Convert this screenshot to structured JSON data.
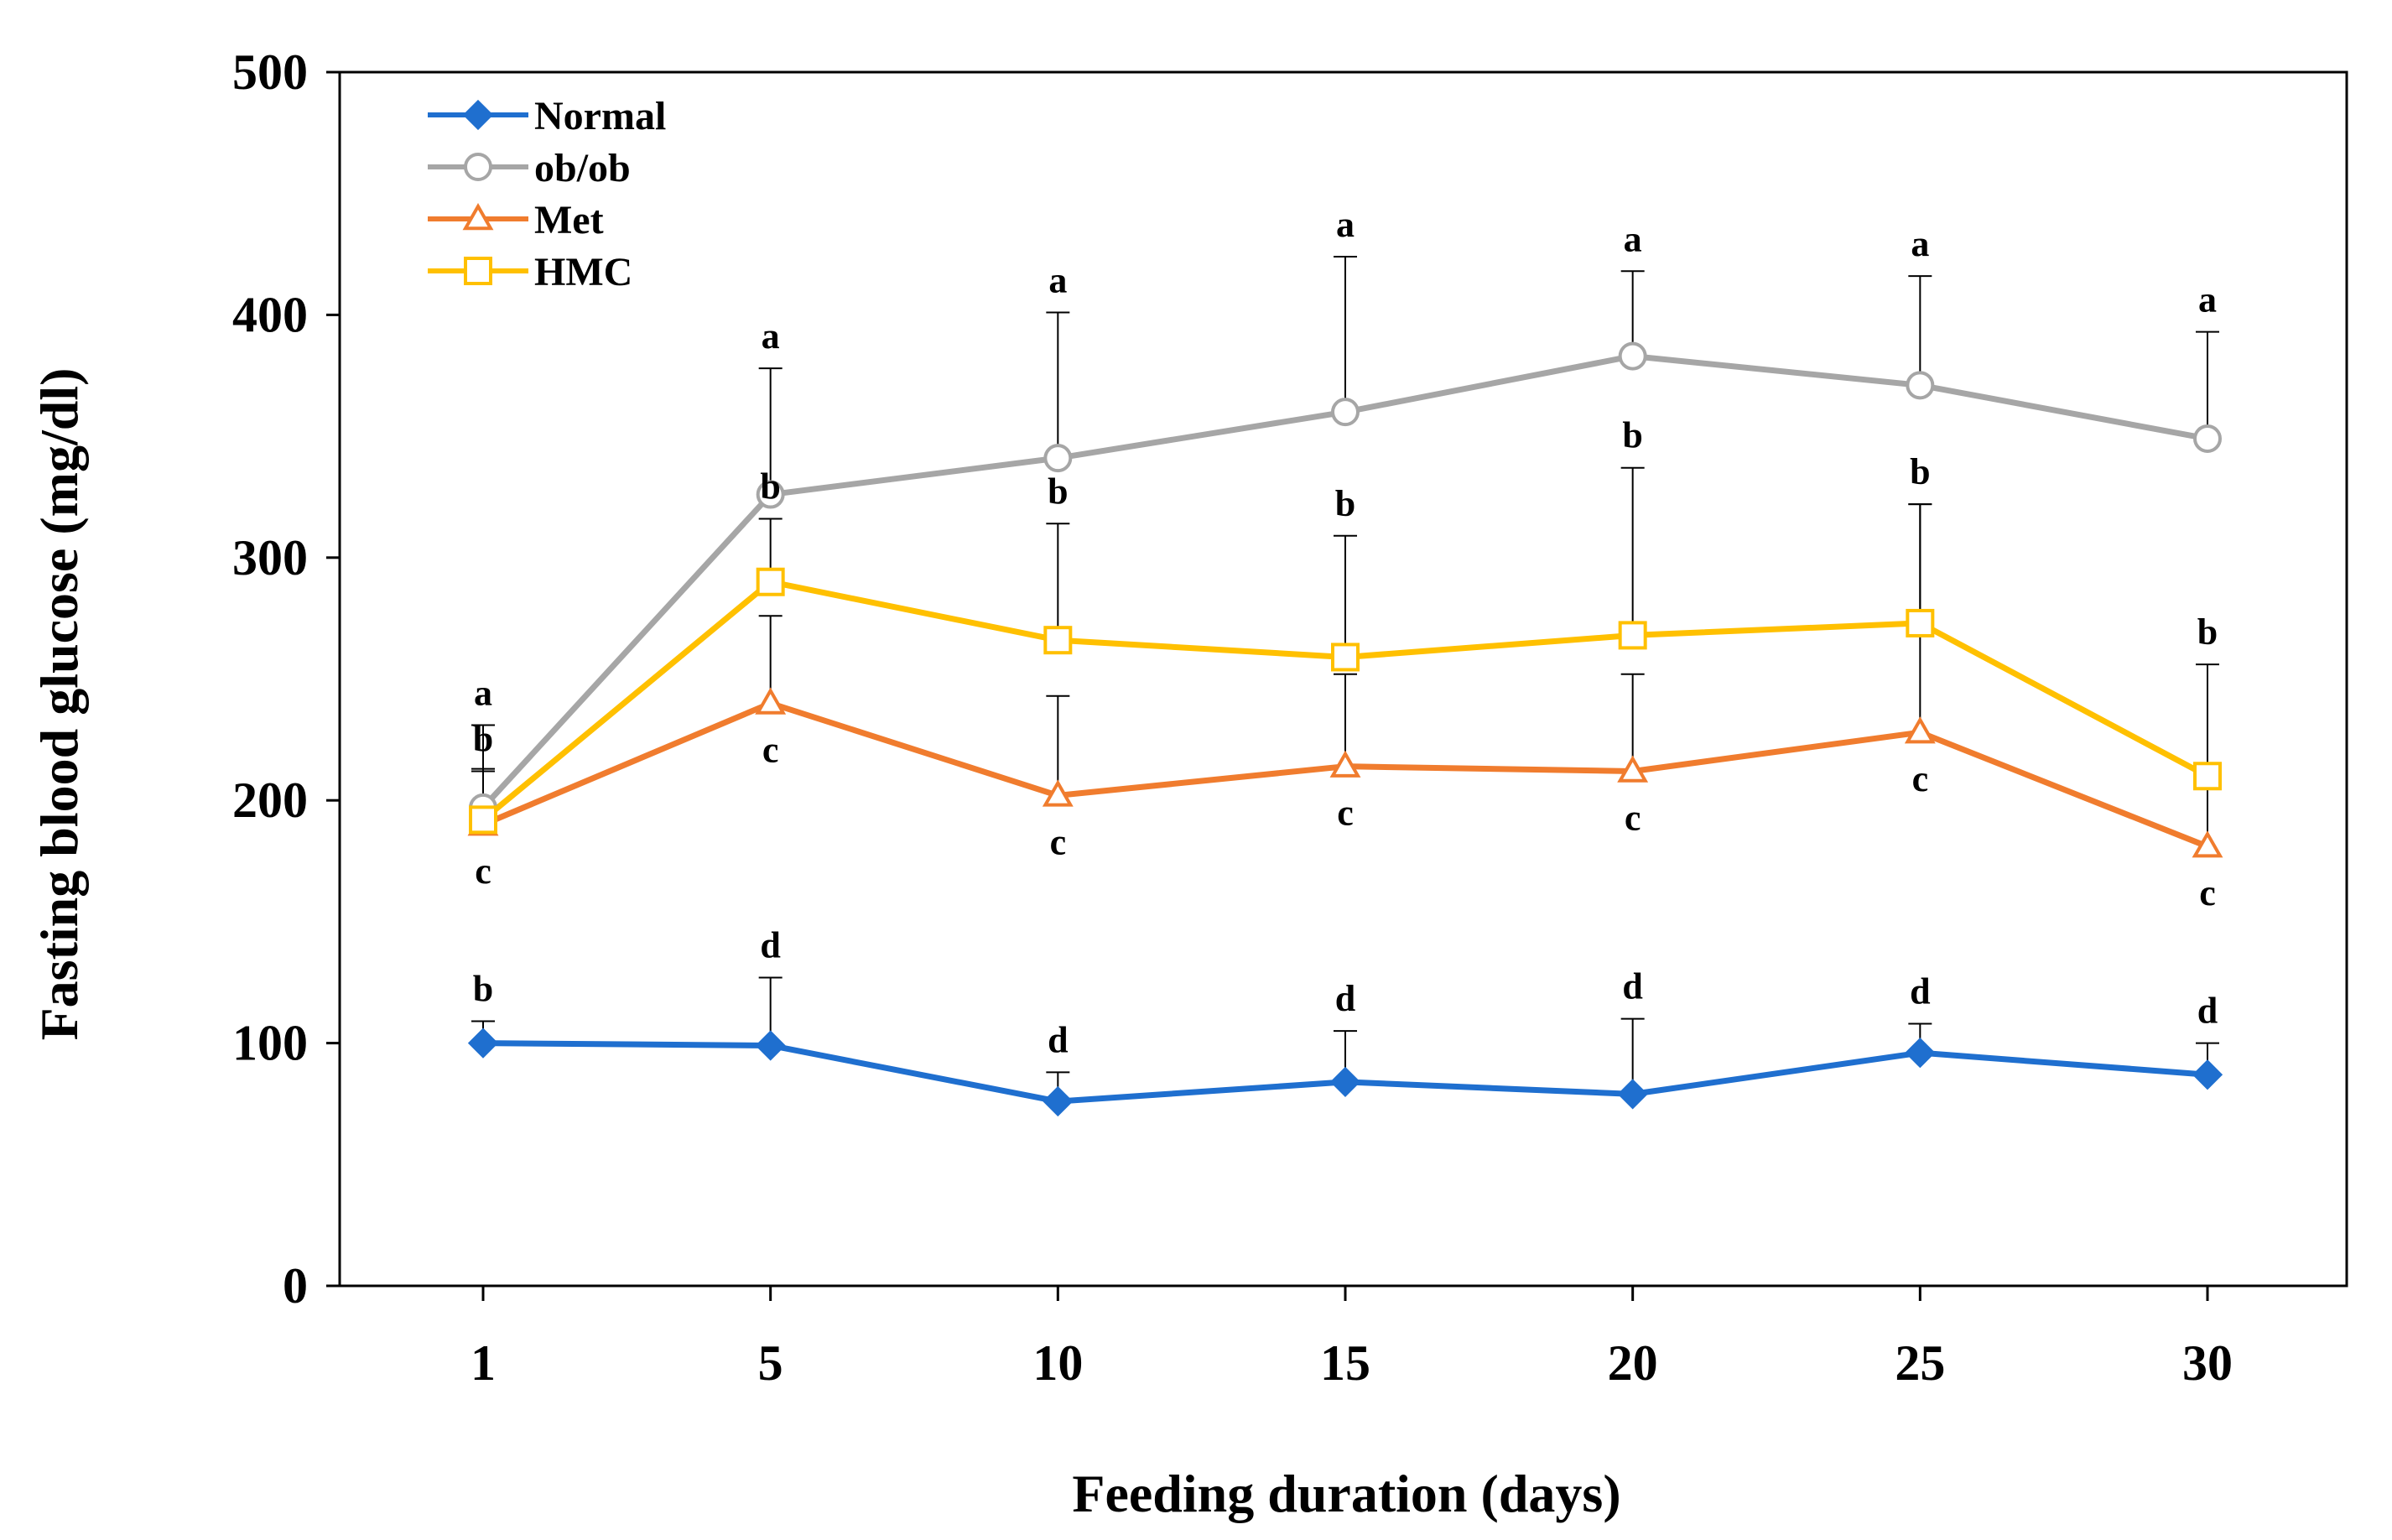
{
  "chart_data": {
    "type": "line",
    "title": "",
    "xlabel": "Feeding duration (days)",
    "ylabel": "Fasting blood glucose (mg/dl)",
    "categories": [
      "1",
      "5",
      "10",
      "15",
      "20",
      "25",
      "30"
    ],
    "ylim": [
      0,
      500
    ],
    "yticks": [
      "0",
      "100",
      "200",
      "300",
      "400",
      "500"
    ],
    "grid": false,
    "legend_position": "top-left",
    "series": [
      {
        "name": "Normal",
        "color": "#1f6fcf",
        "marker": "diamond",
        "marker_fill": "#1f6fcf",
        "values": [
          100,
          99,
          76,
          84,
          79,
          96,
          87
        ],
        "error_upper": [
          109,
          127,
          88,
          105,
          110,
          108,
          100
        ],
        "labels": [
          "b",
          "d",
          "d",
          "d",
          "d",
          "d",
          "d"
        ],
        "label_side": [
          "above",
          "above",
          "above",
          "above",
          "above",
          "above",
          "above"
        ]
      },
      {
        "name": "ob/ob",
        "color": "#a6a6a6",
        "marker": "circle",
        "marker_fill": "#ffffff",
        "values": [
          197,
          326,
          341,
          360,
          383,
          371,
          349
        ],
        "error_upper": [
          231,
          378,
          401,
          424,
          418,
          416,
          393
        ],
        "labels": [
          "a",
          "a",
          "a",
          "a",
          "a",
          "a",
          "a"
        ],
        "label_side": [
          "above",
          "above",
          "above",
          "above",
          "above",
          "above",
          "above"
        ]
      },
      {
        "name": "Met",
        "color": "#f07c2e",
        "marker": "triangle",
        "marker_fill": "#ffffff",
        "values": [
          190,
          240,
          202,
          214,
          212,
          228,
          181
        ],
        "error_upper": [
          213,
          276,
          243,
          252,
          252,
          322,
          205
        ],
        "labels": [
          "c",
          "c",
          "c",
          "c",
          "c",
          "c",
          "c"
        ],
        "label_side": [
          "below",
          "below",
          "below",
          "below",
          "below",
          "below",
          "below"
        ]
      },
      {
        "name": "HMC",
        "color": "#ffc000",
        "marker": "square",
        "marker_fill": "#ffffff",
        "values": [
          192,
          290,
          266,
          259,
          268,
          273,
          210
        ],
        "error_upper": [
          212,
          316,
          314,
          309,
          337,
          322,
          256
        ],
        "labels": [
          "b",
          "b",
          "b",
          "b",
          "b",
          "b",
          "b"
        ],
        "label_side": [
          "above",
          "above",
          "above",
          "above",
          "above",
          "above",
          "above"
        ]
      }
    ]
  }
}
